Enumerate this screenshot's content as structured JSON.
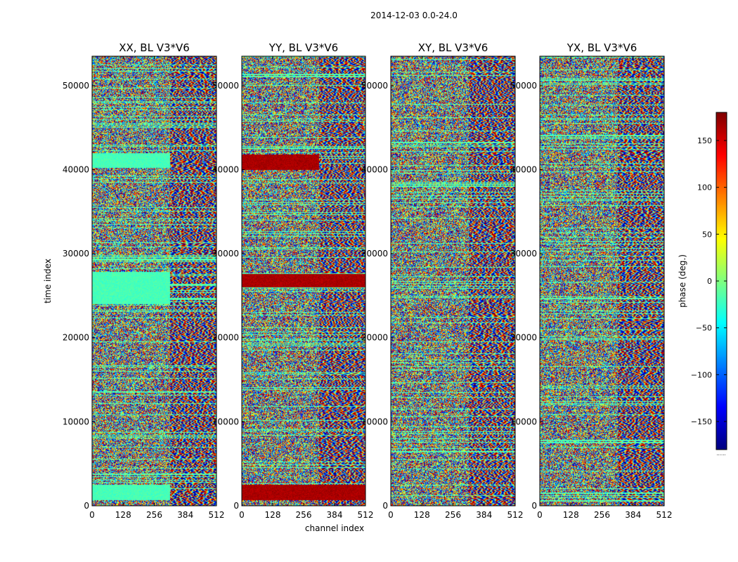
{
  "figure": {
    "suptitle": "2014-12-03 0.0-24.0"
  },
  "chart_data": [
    {
      "type": "heatmap",
      "title": "XX, BL V3*V6",
      "xlabel": "",
      "ylabel": "time index",
      "xlim": [
        0,
        512
      ],
      "ylim": [
        0,
        53500
      ],
      "xticks": [
        0,
        128,
        256,
        384,
        512
      ],
      "yticks": [
        0,
        10000,
        20000,
        30000,
        40000,
        50000
      ],
      "colorscale": "jet",
      "value_range": [
        -180,
        180
      ],
      "flat_bands": [
        {
          "from": 600,
          "to": 2500,
          "channel_max": 320,
          "value": -20
        },
        {
          "from": 24000,
          "to": 27800,
          "channel_max": 320,
          "value": -20
        },
        {
          "from": 40200,
          "to": 42000,
          "channel_max": 320,
          "value": -20
        }
      ]
    },
    {
      "type": "heatmap",
      "title": "YY, BL V3*V6",
      "xlabel": "channel index",
      "ylabel": "",
      "xlim": [
        0,
        512
      ],
      "ylim": [
        0,
        53500
      ],
      "xticks": [
        0,
        128,
        256,
        384,
        512
      ],
      "yticks": [
        0,
        10000,
        20000,
        30000,
        40000,
        50000
      ],
      "colorscale": "jet",
      "value_range": [
        -180,
        180
      ],
      "flat_bands": [
        {
          "from": 600,
          "to": 2500,
          "channel_max": 512,
          "value": 165
        },
        {
          "from": 26000,
          "to": 27600,
          "channel_max": 512,
          "value": 165
        },
        {
          "from": 40000,
          "to": 41800,
          "channel_max": 320,
          "value": 165
        }
      ]
    },
    {
      "type": "heatmap",
      "title": "XY, BL V3*V6",
      "xlabel": "",
      "ylabel": "",
      "xlim": [
        0,
        512
      ],
      "ylim": [
        0,
        53500
      ],
      "xticks": [
        0,
        128,
        256,
        384,
        512
      ],
      "yticks": [
        0,
        10000,
        20000,
        30000,
        40000,
        50000
      ],
      "colorscale": "jet",
      "value_range": [
        -180,
        180
      ],
      "flat_bands": []
    },
    {
      "type": "heatmap",
      "title": "YX, BL V3*V6",
      "xlabel": "",
      "ylabel": "",
      "xlim": [
        0,
        512
      ],
      "ylim": [
        0,
        53500
      ],
      "xticks": [
        0,
        128,
        256,
        384,
        512
      ],
      "yticks": [
        0,
        10000,
        20000,
        30000,
        40000,
        50000
      ],
      "colorscale": "jet",
      "value_range": [
        -180,
        180
      ],
      "flat_bands": []
    }
  ],
  "colorbar": {
    "label": "phase (deg.)",
    "range": [
      -180,
      180
    ],
    "ticks": [
      150,
      100,
      50,
      0,
      -50,
      -100,
      -150
    ],
    "tick_labels": [
      "150",
      "100",
      "50",
      "0",
      "−50",
      "−100",
      "−150"
    ],
    "footer": "......"
  }
}
